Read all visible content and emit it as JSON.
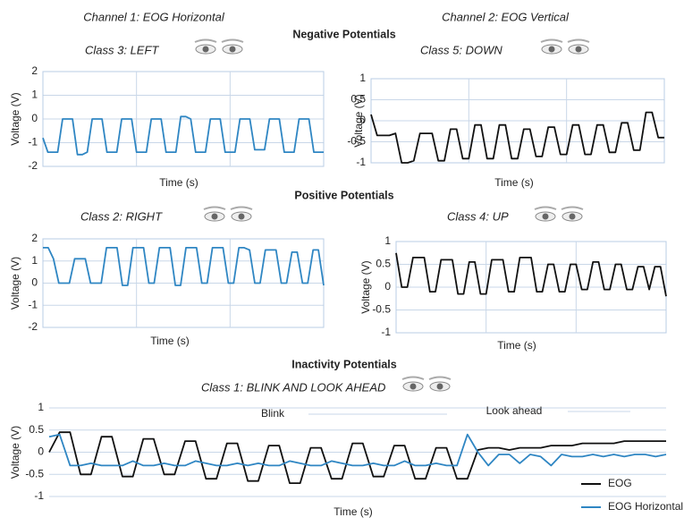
{
  "figure": {
    "channel_titles": [
      "Channel 1: EOG Horizontal",
      "Channel 2: EOG Vertical"
    ],
    "section_titles": [
      "Negative Potentials",
      "Positive Potentials",
      "Inactivity Potentials"
    ]
  },
  "chart_data": [
    {
      "type": "line",
      "title": "Class 3: LEFT",
      "xlabel": "Time (s)",
      "ylabel": "Voltage (V)",
      "ylim": [
        -2,
        2
      ],
      "yticks": [
        2,
        1,
        0,
        -1,
        -2
      ],
      "grid": true,
      "series": [
        {
          "color": "#2f86c3",
          "values": [
            -0.8,
            -1.4,
            -1.4,
            -1.4,
            0,
            0,
            0,
            -1.5,
            -1.5,
            -1.4,
            0,
            0,
            0,
            -1.4,
            -1.4,
            -1.4,
            0,
            0,
            0,
            -1.4,
            -1.4,
            -1.4,
            0,
            0,
            0,
            -1.4,
            -1.4,
            -1.4,
            0.1,
            0.1,
            0,
            -1.4,
            -1.4,
            -1.4,
            0,
            0,
            0,
            -1.4,
            -1.4,
            -1.4,
            0,
            0,
            0,
            -1.3,
            -1.3,
            -1.3,
            0,
            0,
            0,
            -1.4,
            -1.4,
            -1.4,
            0,
            0,
            0,
            -1.4,
            -1.4,
            -1.4
          ]
        }
      ]
    },
    {
      "type": "line",
      "title": "Class 5: DOWN",
      "xlabel": "Time (s)",
      "ylabel": "Voltage (V)",
      "ylim": [
        -1,
        1
      ],
      "yticks": [
        1,
        0.5,
        0,
        -0.5,
        -1
      ],
      "grid": true,
      "series": [
        {
          "color": "#111111",
          "values": [
            0.15,
            -0.35,
            -0.35,
            -0.35,
            -0.3,
            -1,
            -1,
            -0.95,
            -0.3,
            -0.3,
            -0.3,
            -0.95,
            -0.95,
            -0.2,
            -0.2,
            -0.9,
            -0.9,
            -0.1,
            -0.1,
            -0.9,
            -0.9,
            -0.1,
            -0.1,
            -0.9,
            -0.9,
            -0.2,
            -0.2,
            -0.85,
            -0.85,
            -0.15,
            -0.15,
            -0.8,
            -0.8,
            -0.1,
            -0.1,
            -0.8,
            -0.8,
            -0.1,
            -0.1,
            -0.75,
            -0.75,
            -0.05,
            -0.05,
            -0.7,
            -0.7,
            0.2,
            0.2,
            -0.4,
            -0.4
          ]
        }
      ]
    },
    {
      "type": "line",
      "title": "Class 2: RIGHT",
      "xlabel": "Time (s)",
      "ylabel": "Voltage (V)",
      "ylim": [
        -2,
        2
      ],
      "yticks": [
        2,
        1,
        0,
        -1,
        -2
      ],
      "grid": true,
      "series": [
        {
          "color": "#2f86c3",
          "values": [
            1.6,
            1.6,
            1.1,
            0,
            0,
            0,
            1.1,
            1.1,
            1.1,
            0,
            0,
            0,
            1.6,
            1.6,
            1.6,
            -0.1,
            -0.1,
            1.6,
            1.6,
            1.6,
            0,
            0,
            1.6,
            1.6,
            1.6,
            -0.1,
            -0.1,
            1.6,
            1.6,
            1.6,
            0,
            0,
            1.6,
            1.6,
            1.6,
            0,
            0,
            1.6,
            1.6,
            1.5,
            0,
            0,
            1.5,
            1.5,
            1.5,
            0,
            0,
            1.4,
            1.4,
            0,
            0,
            1.5,
            1.5,
            -0.1
          ]
        }
      ]
    },
    {
      "type": "line",
      "title": "Class 4: UP",
      "xlabel": "Time (s)",
      "ylabel": "Voltage (V)",
      "ylim": [
        -1,
        1
      ],
      "yticks": [
        1,
        0.5,
        0,
        -0.5,
        -1
      ],
      "grid": true,
      "series": [
        {
          "color": "#111111",
          "values": [
            0.75,
            0,
            0,
            0.65,
            0.65,
            0.65,
            -0.1,
            -0.1,
            0.6,
            0.6,
            0.6,
            -0.15,
            -0.15,
            0.55,
            0.55,
            -0.15,
            -0.15,
            0.6,
            0.6,
            0.6,
            -0.1,
            -0.1,
            0.65,
            0.65,
            0.65,
            -0.1,
            -0.1,
            0.5,
            0.5,
            -0.1,
            -0.1,
            0.5,
            0.5,
            -0.05,
            -0.05,
            0.55,
            0.55,
            -0.05,
            -0.05,
            0.5,
            0.5,
            -0.05,
            -0.05,
            0.45,
            0.45,
            -0.05,
            0.45,
            0.45,
            -0.2
          ]
        }
      ]
    },
    {
      "type": "line",
      "title": "Class 1: BLINK AND LOOK AHEAD",
      "xlabel": "Time (s)",
      "ylabel": "Voltage (V)",
      "ylim": [
        -1,
        1
      ],
      "yticks": [
        1,
        0.5,
        0,
        -0.5,
        -1
      ],
      "grid": true,
      "legend": "lower right",
      "annotations": [
        "Blink",
        "Look ahead"
      ],
      "series": [
        {
          "name": "EOG",
          "color": "#111111",
          "values": [
            0,
            0.45,
            0.45,
            -0.5,
            -0.5,
            0.35,
            0.35,
            -0.55,
            -0.55,
            0.3,
            0.3,
            -0.5,
            -0.5,
            0.25,
            0.25,
            -0.6,
            -0.6,
            0.2,
            0.2,
            -0.65,
            -0.65,
            0.15,
            0.15,
            -0.7,
            -0.7,
            0.1,
            0.1,
            -0.6,
            -0.6,
            0.2,
            0.2,
            -0.55,
            -0.55,
            0.15,
            0.15,
            -0.6,
            -0.6,
            0.1,
            0.1,
            -0.6,
            -0.6,
            0.05,
            0.1,
            0.1,
            0.05,
            0.1,
            0.1,
            0.1,
            0.15,
            0.15,
            0.15,
            0.2,
            0.2,
            0.2,
            0.2,
            0.25,
            0.25,
            0.25,
            0.25,
            0.25
          ]
        },
        {
          "name": "EOG Horizontal",
          "color": "#2f86c3",
          "values": [
            0.35,
            0.4,
            -0.3,
            -0.3,
            -0.25,
            -0.3,
            -0.3,
            -0.3,
            -0.2,
            -0.3,
            -0.3,
            -0.25,
            -0.3,
            -0.3,
            -0.2,
            -0.25,
            -0.3,
            -0.3,
            -0.25,
            -0.3,
            -0.25,
            -0.3,
            -0.3,
            -0.2,
            -0.25,
            -0.3,
            -0.3,
            -0.2,
            -0.25,
            -0.3,
            -0.3,
            -0.25,
            -0.3,
            -0.3,
            -0.2,
            -0.3,
            -0.3,
            -0.25,
            -0.3,
            -0.3,
            0.4,
            0,
            -0.3,
            -0.05,
            -0.05,
            -0.25,
            -0.05,
            -0.1,
            -0.3,
            -0.05,
            -0.1,
            -0.1,
            -0.05,
            -0.1,
            -0.05,
            -0.1,
            -0.05,
            -0.05,
            -0.1,
            -0.05
          ]
        }
      ]
    }
  ]
}
